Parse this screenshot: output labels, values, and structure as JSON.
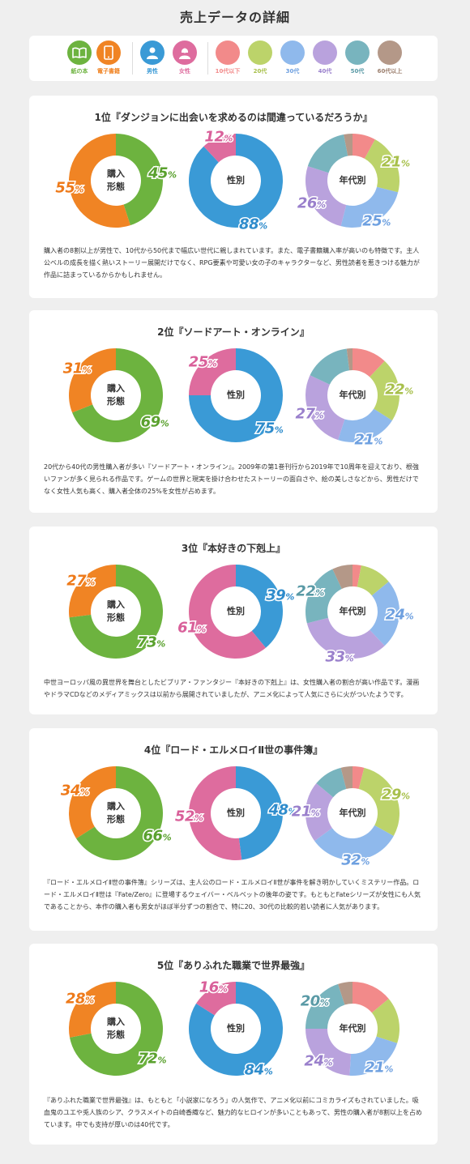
{
  "page_title": "売上データの詳細",
  "legend": {
    "items": [
      {
        "label": "紙の本",
        "color": "#6db33f",
        "icon": "book-icon"
      },
      {
        "label": "電子書籍",
        "color": "#f08424",
        "icon": "smartphone-icon"
      },
      {
        "label": "男性",
        "color": "#3a9ad6",
        "icon": "male-user-icon"
      },
      {
        "label": "女性",
        "color": "#de6c9e",
        "icon": "female-user-icon"
      },
      {
        "label": "10代以下",
        "color": "#f28a8a"
      },
      {
        "label": "20代",
        "color": "#bcd36a"
      },
      {
        "label": "30代",
        "color": "#8fb9ec"
      },
      {
        "label": "40代",
        "color": "#b9a2dd"
      },
      {
        "label": "50代",
        "color": "#78b4be"
      },
      {
        "label": "60代以上",
        "color": "#b49888"
      }
    ]
  },
  "chart_data": [
    {
      "type": "pie",
      "title": "1位『ダンジョンに出会いを求めるのは間違っているだろうか』",
      "description": "購入者の8割以上が男性で、10代から50代まで幅広い世代に親しまれています。また、電子書籍購入率が高いのも特徴です。主人公ベルの成長を描く熱いストーリー展開だけでなく、RPG要素や可愛い女の子のキャラクターなど、男性読者を惹きつける魅力が作品に詰まっているからかもしれません。",
      "format": {
        "label": "購入形態",
        "values": [
          45,
          55
        ],
        "labels": [
          "45",
          "55"
        ]
      },
      "gender": {
        "label": "性別",
        "values": [
          88,
          12
        ],
        "labels": [
          "88",
          "12"
        ]
      },
      "age": {
        "label": "年代別",
        "values": [
          8,
          21,
          25,
          26,
          17,
          3
        ],
        "labels": [
          "",
          "21",
          "25",
          "26",
          "",
          ""
        ]
      }
    },
    {
      "type": "pie",
      "title": "2位『ソードアート・オンライン』",
      "description": "20代から40代の男性購入者が多い『ソードアート・オンライン』。2009年の第1巻刊行から2019年で10周年を迎えており、根強いファンが多く見られる作品です。ゲームの世界と現実を掛け合わせたストーリーの面白さや、絵の美しさなどから、男性だけでなく女性人気も高く、購入者全体の25%を女性が占めます。",
      "format": {
        "label": "購入形態",
        "values": [
          69,
          31
        ],
        "labels": [
          "69",
          "31"
        ]
      },
      "gender": {
        "label": "性別",
        "values": [
          75,
          25
        ],
        "labels": [
          "75",
          "25"
        ]
      },
      "age": {
        "label": "年代別",
        "values": [
          12,
          22,
          21,
          27,
          16,
          2
        ],
        "labels": [
          "",
          "22",
          "21",
          "27",
          "",
          ""
        ]
      }
    },
    {
      "type": "pie",
      "title": "3位『本好きの下剋上』",
      "description": "中世ヨーロッパ風の異世界を舞台としたビブリア・ファンタジー『本好きの下剋上』は、女性購入者の割合が高い作品です。漫画やドラマCDなどのメディアミックスは以前から展開されていましたが、アニメ化によって人気にさらに火がついたようです。",
      "format": {
        "label": "購入形態",
        "values": [
          73,
          27
        ],
        "labels": [
          "73",
          "27"
        ]
      },
      "gender": {
        "label": "性別",
        "values": [
          39,
          61
        ],
        "labels": [
          "39",
          "61"
        ]
      },
      "age": {
        "label": "年代別",
        "values": [
          3,
          11,
          24,
          33,
          22,
          7
        ],
        "labels": [
          "",
          "",
          "24",
          "33",
          "22",
          ""
        ]
      }
    },
    {
      "type": "pie",
      "title": "4位『ロード・エルメロイⅡ世の事件簿』",
      "description": "『ロード・エルメロイⅡ世の事件簿』シリーズは、主人公のロード・エルメロイⅡ世が事件を解き明かしていくミステリー作品。ロード・エルメロイⅡ世は『Fate/Zero』に登場するウェイバー・ベルベットの後年の姿です。もともとFateシリーズが女性にも人気であることから、本作の購入者も男女がほぼ半分ずつの割合で、特に20、30代の比較的若い読者に人気があります。",
      "format": {
        "label": "購入形態",
        "values": [
          66,
          34
        ],
        "labels": [
          "66",
          "34"
        ]
      },
      "gender": {
        "label": "性別",
        "values": [
          48,
          52
        ],
        "labels": [
          "48",
          "52"
        ]
      },
      "age": {
        "label": "年代別",
        "values": [
          4,
          29,
          32,
          21,
          10,
          4
        ],
        "labels": [
          "",
          "29",
          "32",
          "21",
          "",
          ""
        ]
      }
    },
    {
      "type": "pie",
      "title": "5位『ありふれた職業で世界最強』",
      "description": "『ありふれた職業で世界最強』は、もともと「小説家になろう」の人気作で、アニメ化以前にコミカライズもされていました。吸血鬼のユエや兎人族のシア、クラスメイトの白崎香織など、魅力的なヒロインが多いこともあって、男性の購入者が8割以上を占めています。中でも支持が厚いのは40代です。",
      "format": {
        "label": "購入形態",
        "values": [
          72,
          28
        ],
        "labels": [
          "72",
          "28"
        ]
      },
      "gender": {
        "label": "性別",
        "values": [
          84,
          16
        ],
        "labels": [
          "84",
          "16"
        ]
      },
      "age": {
        "label": "年代別",
        "values": [
          14,
          16,
          21,
          24,
          20,
          5
        ],
        "labels": [
          "",
          "",
          "21",
          "24",
          "20",
          ""
        ]
      }
    }
  ]
}
